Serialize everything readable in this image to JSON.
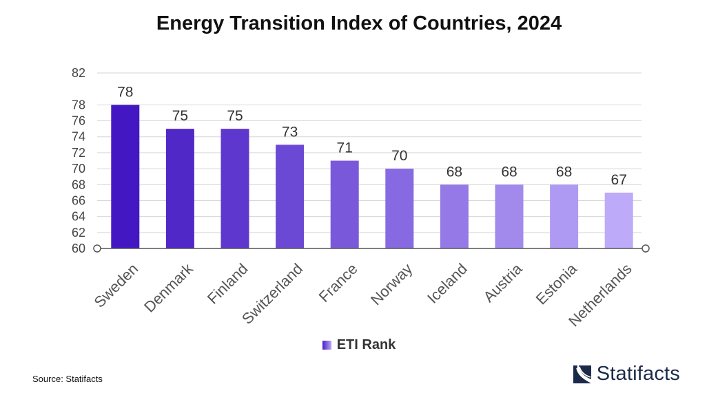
{
  "chart_data": {
    "type": "bar",
    "title": "Energy Transition Index of Countries, 2024",
    "categories": [
      "Sweden",
      "Denmark",
      "Finland",
      "Switzerland",
      "France",
      "Norway",
      "Iceland",
      "Austria",
      "Estonia",
      "Netherlands"
    ],
    "series": [
      {
        "name": "ETI Rank",
        "values": [
          78,
          75,
          75,
          73,
          71,
          70,
          68,
          68,
          68,
          67
        ]
      }
    ],
    "yticks": [
      60,
      62,
      64,
      66,
      68,
      70,
      72,
      74,
      76,
      78,
      82
    ],
    "ylim": [
      60,
      82
    ],
    "xlabel": "",
    "ylabel": "",
    "grid": true,
    "legend_position": "bottom-center",
    "colors": {
      "start": "#4318c2",
      "end": "#bdaaf9"
    }
  },
  "footer": {
    "source": "Source: Statifacts",
    "brand": "Statifacts"
  }
}
